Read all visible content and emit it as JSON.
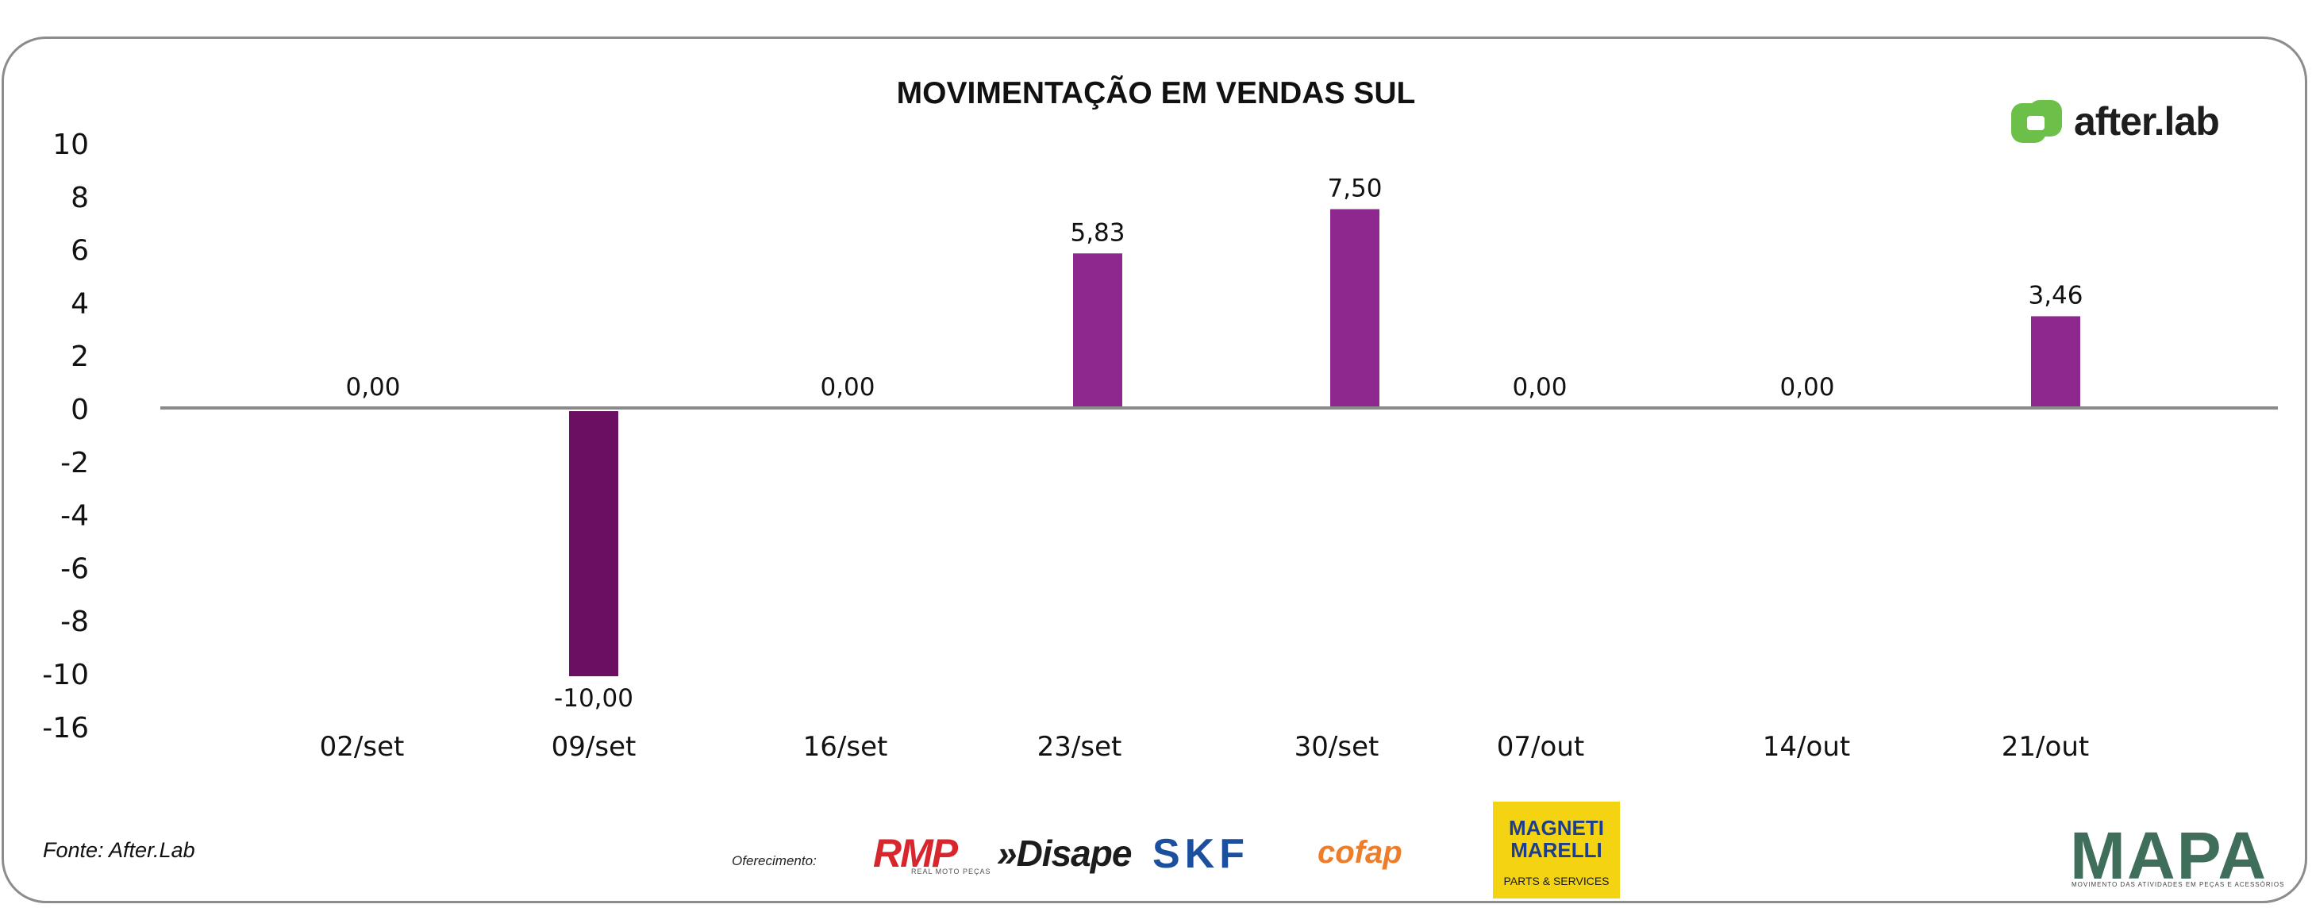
{
  "chart_data": {
    "type": "bar",
    "title": "MOVIMENTAÇÃO EM VENDAS SUL",
    "categories": [
      "02/set",
      "09/set",
      "16/set",
      "23/set",
      "30/set",
      "07/out",
      "14/out",
      "21/out"
    ],
    "values": [
      0,
      -10,
      0,
      5.83,
      7.5,
      0,
      0,
      3.46
    ],
    "data_labels": [
      "0,00",
      "-10,00",
      "0,00",
      "5,83",
      "7,50",
      "0,00",
      "0,00",
      "3,46"
    ],
    "y_ticks": [
      10,
      8,
      6,
      4,
      2,
      0,
      -2,
      -4,
      -6,
      -8,
      -10,
      -16
    ],
    "y_tick_labels": [
      "10",
      "8",
      "6",
      "4",
      "2",
      "0",
      "-2",
      "-4",
      "-6",
      "-8",
      "-10",
      "-16"
    ],
    "xlabel": "",
    "ylabel": "",
    "grid": false,
    "colors": {
      "positive": "#8e288f",
      "negative": "#6b0f63",
      "axis": "#8a8a8a"
    }
  },
  "brand": {
    "name": "after.lab",
    "color": "#6cc04a"
  },
  "footer": {
    "source": "Fonte: After.Lab",
    "sponsor_label": "Oferecimento:",
    "sponsors": {
      "rmp": "RMP",
      "rmp_sub": "REAL MOTO PEÇAS",
      "disape": "»Disape",
      "skf": "SKF",
      "cofap": "cofap",
      "magneti_1": "MAGNETI",
      "magneti_2": "MARELLI",
      "magneti_3": "PARTS & SERVICES"
    },
    "mapa": "MAPA",
    "mapa_sub": "MOVIMENTO DAS ATIVIDADES EM PEÇAS E ACESSÓRIOS"
  }
}
